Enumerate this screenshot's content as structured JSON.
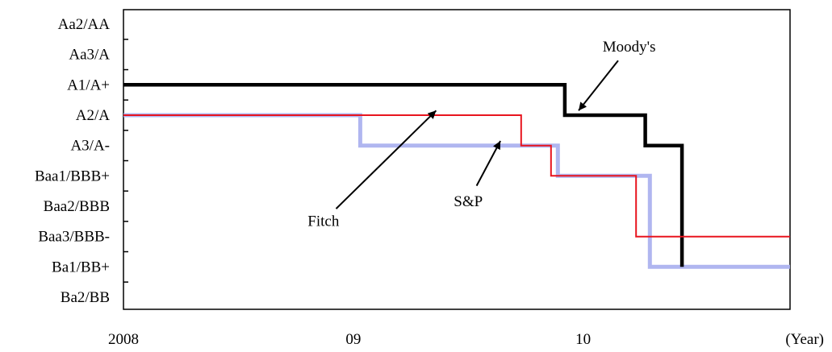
{
  "chart_data": {
    "type": "line",
    "step": true,
    "title": "",
    "xlabel": "(Year)",
    "ylabel": "",
    "x_ticks": [
      {
        "value": 2008,
        "label": "2008"
      },
      {
        "value": 2009,
        "label": "09"
      },
      {
        "value": 2010,
        "label": "10"
      }
    ],
    "xlim": [
      2008,
      2010.9
    ],
    "y_categories": [
      "Ba2/BB",
      "Ba1/BB+",
      "Baa3/BBB-",
      "Baa2/BBB",
      "Baa1/BBB+",
      "A3/A-",
      "A2/A",
      "A1/A+",
      "Aa3/A",
      "Aa2/AA"
    ],
    "ylim": [
      0,
      9
    ],
    "grid": false,
    "series": [
      {
        "name": "Moody's",
        "color": "#000000",
        "x": [
          2008,
          2009.92,
          2009.92,
          2010.27,
          2010.27,
          2010.43,
          2010.43
        ],
        "y": [
          7,
          7,
          6,
          6,
          5,
          5,
          1
        ]
      },
      {
        "name": "Fitch",
        "color": "#e8141e",
        "x": [
          2008,
          2009.73,
          2009.73,
          2009.86,
          2009.86,
          2010.23,
          2010.23,
          2010.9
        ],
        "y": [
          6,
          6,
          5,
          5,
          4,
          4,
          2,
          2
        ]
      },
      {
        "name": "S&P",
        "color": "#a7aeee",
        "x": [
          2008,
          2009.03,
          2009.03,
          2009.89,
          2009.89,
          2010.29,
          2010.29,
          2010.9
        ],
        "y": [
          6,
          6,
          5,
          5,
          4,
          4,
          1,
          1
        ]
      }
    ],
    "annotations": [
      {
        "text": "Moody's",
        "label_x": 2010.2,
        "label_y": 8.1,
        "arrow_to": [
          2009.98,
          6.15
        ]
      },
      {
        "text": "Fitch",
        "label_x": 2008.87,
        "label_y": 2.35,
        "arrow_to": [
          2009.36,
          6.15
        ]
      },
      {
        "text": "S&P",
        "label_x": 2009.5,
        "label_y": 3.0,
        "arrow_to": [
          2009.64,
          5.15
        ]
      }
    ]
  }
}
